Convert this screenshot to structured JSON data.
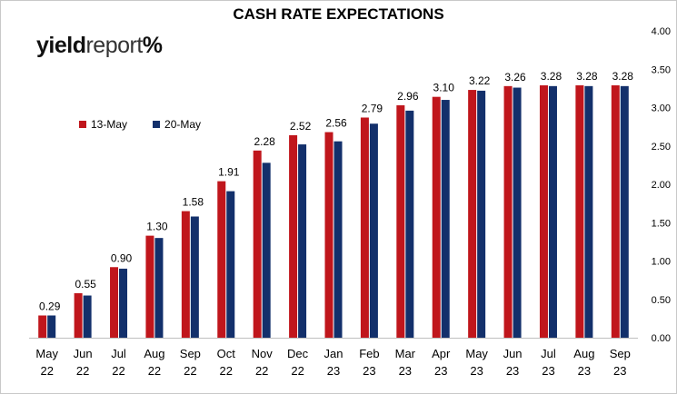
{
  "chart_data": {
    "type": "bar",
    "title": "CASH RATE EXPECTATIONS",
    "categories": [
      [
        "May",
        "22"
      ],
      [
        "Jun",
        "22"
      ],
      [
        "Jul",
        "22"
      ],
      [
        "Aug",
        "22"
      ],
      [
        "Sep",
        "22"
      ],
      [
        "Oct",
        "22"
      ],
      [
        "Nov",
        "22"
      ],
      [
        "Dec",
        "22"
      ],
      [
        "Jan",
        "23"
      ],
      [
        "Feb",
        "23"
      ],
      [
        "Mar",
        "23"
      ],
      [
        "Apr",
        "23"
      ],
      [
        "May",
        "23"
      ],
      [
        "Jun",
        "23"
      ],
      [
        "Jul",
        "23"
      ],
      [
        "Aug",
        "23"
      ],
      [
        "Sep",
        "23"
      ]
    ],
    "series": [
      {
        "name": "13-May",
        "color": "#c0161c",
        "values": [
          0.29,
          0.58,
          0.92,
          1.33,
          1.65,
          2.04,
          2.44,
          2.64,
          2.68,
          2.87,
          3.03,
          3.14,
          3.23,
          3.28,
          3.29,
          3.29,
          3.29
        ]
      },
      {
        "name": "20-May",
        "color": "#13306b",
        "values": [
          0.29,
          0.55,
          0.9,
          1.3,
          1.58,
          1.91,
          2.28,
          2.52,
          2.56,
          2.79,
          2.96,
          3.1,
          3.22,
          3.26,
          3.28,
          3.28,
          3.28
        ]
      }
    ],
    "data_labels": [
      "0.29",
      "0.55",
      "0.90",
      "1.30",
      "1.58",
      "1.91",
      "2.28",
      "2.52",
      "2.56",
      "2.79",
      "2.96",
      "3.10",
      "3.22",
      "3.26",
      "3.28",
      "3.28",
      "3.28"
    ],
    "y_ticks": [
      "0.00",
      "0.50",
      "1.00",
      "1.50",
      "2.00",
      "2.50",
      "3.00",
      "3.50",
      "4.00"
    ],
    "ylim": [
      0,
      4
    ],
    "y_axis_side": "right",
    "grid": false,
    "legend_position": "top-left"
  },
  "logo": {
    "bold": "yield",
    "light": "report",
    "symbol": "%"
  }
}
